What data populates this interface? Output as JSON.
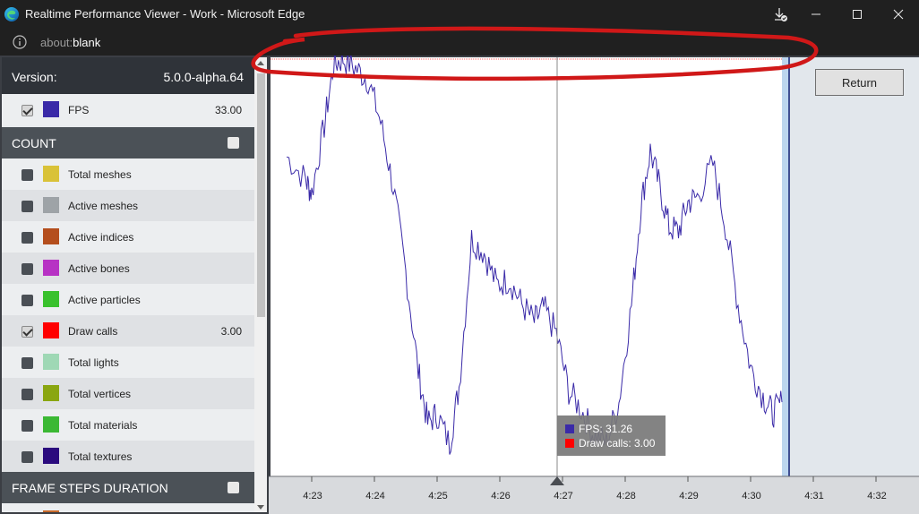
{
  "window": {
    "title": "Realtime Performance Viewer - Work - Microsoft Edge"
  },
  "address": {
    "scheme": "about:",
    "host": "blank"
  },
  "sidebar": {
    "version_label": "Version:",
    "version_value": "5.0.0-alpha.64",
    "fps": {
      "label": "FPS",
      "value": "33.00",
      "color": "#3a2aa8",
      "checked": true
    },
    "count_section": "COUNT",
    "items": [
      {
        "label": "Total meshes",
        "color": "#d9c238",
        "value": "",
        "checked": false
      },
      {
        "label": "Active meshes",
        "color": "#9ea3a7",
        "value": "",
        "checked": false
      },
      {
        "label": "Active indices",
        "color": "#b44e1d",
        "value": "",
        "checked": false
      },
      {
        "label": "Active bones",
        "color": "#b732c4",
        "value": "",
        "checked": false
      },
      {
        "label": "Active particles",
        "color": "#39c12d",
        "value": "",
        "checked": false
      },
      {
        "label": "Draw calls",
        "color": "#ff0000",
        "value": "3.00",
        "checked": true
      },
      {
        "label": "Total lights",
        "color": "#9fd8b5",
        "value": "",
        "checked": false
      },
      {
        "label": "Total vertices",
        "color": "#8aa611",
        "value": "",
        "checked": false
      },
      {
        "label": "Total materials",
        "color": "#3bb834",
        "value": "",
        "checked": false
      },
      {
        "label": "Total textures",
        "color": "#2b0b7e",
        "value": "",
        "checked": false
      }
    ],
    "frame_section": "FRAME STEPS DURATION"
  },
  "chart": {
    "return_label": "Return",
    "tooltip": {
      "fps": "FPS: 31.26",
      "draw_calls": "Draw calls: 3.00",
      "fps_color": "#3a2aa8",
      "draw_color": "#ff0000"
    },
    "ticks": [
      "4:23",
      "4:24",
      "4:25",
      "4:26",
      "4:27",
      "4:28",
      "4:29",
      "4:30",
      "4:31",
      "4:32"
    ]
  },
  "chart_data": {
    "type": "line",
    "x_unit": "time (m:ss)",
    "xlim": [
      "4:22.6",
      "4:32.6"
    ],
    "ylim": [
      20,
      41
    ],
    "series": [
      {
        "name": "FPS",
        "color": "#3a2aa8",
        "points": [
          [
            "4:22.6",
            36.2
          ],
          [
            "4:22.9",
            35.0
          ],
          [
            "4:23.0",
            34.3
          ],
          [
            "4:23.2",
            37.8
          ],
          [
            "4:23.35",
            41.0
          ],
          [
            "4:23.5",
            41.3
          ],
          [
            "4:23.7",
            40.8
          ],
          [
            "4:23.9",
            40.2
          ],
          [
            "4:24.1",
            38.0
          ],
          [
            "4:24.3",
            34.6
          ],
          [
            "4:24.5",
            30.2
          ],
          [
            "4:24.7",
            25.0
          ],
          [
            "4:24.85",
            22.3
          ],
          [
            "4:25.0",
            22.8
          ],
          [
            "4:25.2",
            21.2
          ],
          [
            "4:25.35",
            24.2
          ],
          [
            "4:25.55",
            31.9
          ],
          [
            "4:25.75",
            31.2
          ],
          [
            "4:25.95",
            29.5
          ],
          [
            "4:26.15",
            29.8
          ],
          [
            "4:26.35",
            28.5
          ],
          [
            "4:26.55",
            27.6
          ],
          [
            "4:26.7",
            28.3
          ],
          [
            "4:26.9",
            27.0
          ],
          [
            "4:27.1",
            24.0
          ],
          [
            "4:27.3",
            23.0
          ],
          [
            "4:27.5",
            21.7
          ],
          [
            "4:27.7",
            21.3
          ],
          [
            "4:27.9",
            23.4
          ],
          [
            "4:28.1",
            28.5
          ],
          [
            "4:28.25",
            33.6
          ],
          [
            "4:28.4",
            36.5
          ],
          [
            "4:28.55",
            34.6
          ],
          [
            "4:28.7",
            32.5
          ],
          [
            "4:28.85",
            32.3
          ],
          [
            "4:29.0",
            33.8
          ],
          [
            "4:29.15",
            34.1
          ],
          [
            "4:29.4",
            35.8
          ],
          [
            "4:29.6",
            32.6
          ],
          [
            "4:29.8",
            28.5
          ],
          [
            "4:30.0",
            25.2
          ],
          [
            "4:30.2",
            23.7
          ],
          [
            "4:30.35",
            22.8
          ],
          [
            "4:30.5",
            23.4
          ]
        ]
      }
    ],
    "grid": false,
    "legend": "hidden"
  }
}
